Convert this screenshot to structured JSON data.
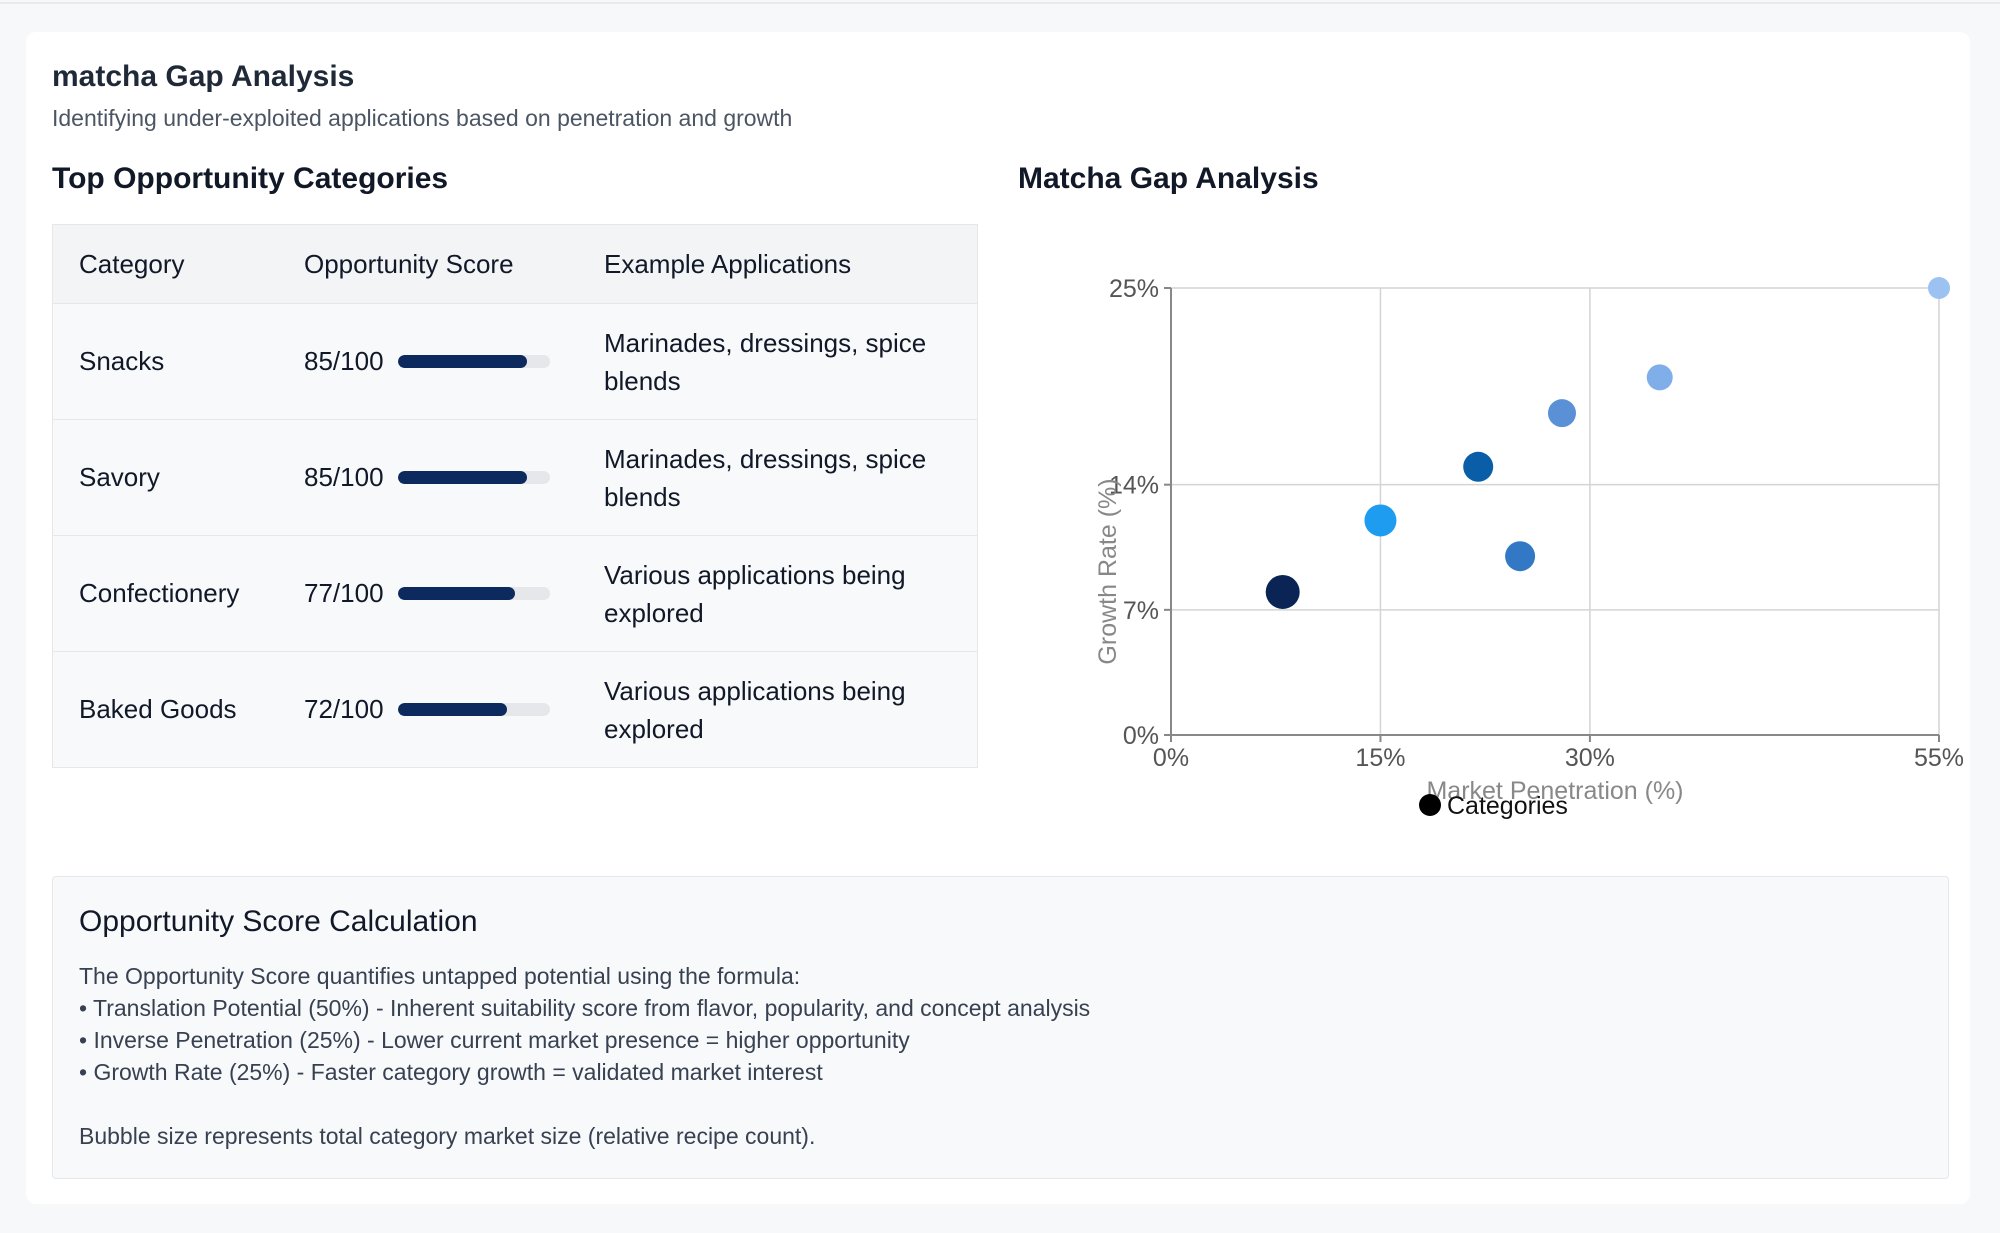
{
  "header": {
    "title": "matcha Gap Analysis",
    "subtitle": "Identifying under-exploited applications based on penetration and growth"
  },
  "table": {
    "heading": "Top Opportunity Categories",
    "columns": [
      "Category",
      "Opportunity Score",
      "Example Applications"
    ],
    "rows": [
      {
        "category": "Snacks",
        "score_text": "85/100",
        "score": 85,
        "applications": "Marinades, dressings, spice blends"
      },
      {
        "category": "Savory",
        "score_text": "85/100",
        "score": 85,
        "applications": "Marinades, dressings, spice blends"
      },
      {
        "category": "Confectionery",
        "score_text": "77/100",
        "score": 77,
        "applications": "Various applications being explored"
      },
      {
        "category": "Baked Goods",
        "score_text": "72/100",
        "score": 72,
        "applications": "Various applications being explored"
      }
    ],
    "bar_color": "#0d2a5e"
  },
  "chart_data": {
    "type": "scatter",
    "title": "Matcha Gap Analysis",
    "xlabel": "Market Penetration (%)",
    "ylabel": "Growth Rate (%)",
    "x_ticks": [
      0,
      15,
      30,
      55
    ],
    "y_ticks": [
      0,
      7,
      14,
      25
    ],
    "x_tick_labels": [
      "0%",
      "15%",
      "30%",
      "55%"
    ],
    "y_tick_labels": [
      "0%",
      "7%",
      "14%",
      "25%"
    ],
    "xlim": [
      0,
      55
    ],
    "ylim": [
      0,
      25
    ],
    "grid": true,
    "legend": {
      "position": "bottom",
      "label": "Categories",
      "color": "#000000"
    },
    "series": [
      {
        "name": "Categories",
        "points": [
          {
            "x": 8,
            "y": 8,
            "size": 17,
            "color": "#0b2456"
          },
          {
            "x": 15,
            "y": 12,
            "size": 16,
            "color": "#1e9cf0"
          },
          {
            "x": 22,
            "y": 15,
            "size": 15,
            "color": "#0a5ea8"
          },
          {
            "x": 25,
            "y": 10,
            "size": 15,
            "color": "#3378c4"
          },
          {
            "x": 28,
            "y": 18,
            "size": 14,
            "color": "#5a90d6"
          },
          {
            "x": 35,
            "y": 20,
            "size": 13,
            "color": "#80aee8"
          },
          {
            "x": 55,
            "y": 25,
            "size": 11,
            "color": "#9cc2f2"
          }
        ]
      }
    ]
  },
  "calculation": {
    "title": "Opportunity Score Calculation",
    "intro": "The Opportunity Score quantifies untapped potential using the formula:",
    "items": [
      "• Translation Potential (50%) - Inherent suitability score from flavor, popularity, and concept analysis",
      "• Inverse Penetration (25%) - Lower current market presence = higher opportunity",
      "• Growth Rate (25%) - Faster category growth = validated market interest"
    ],
    "note": "Bubble size represents total category market size (relative recipe count)."
  }
}
